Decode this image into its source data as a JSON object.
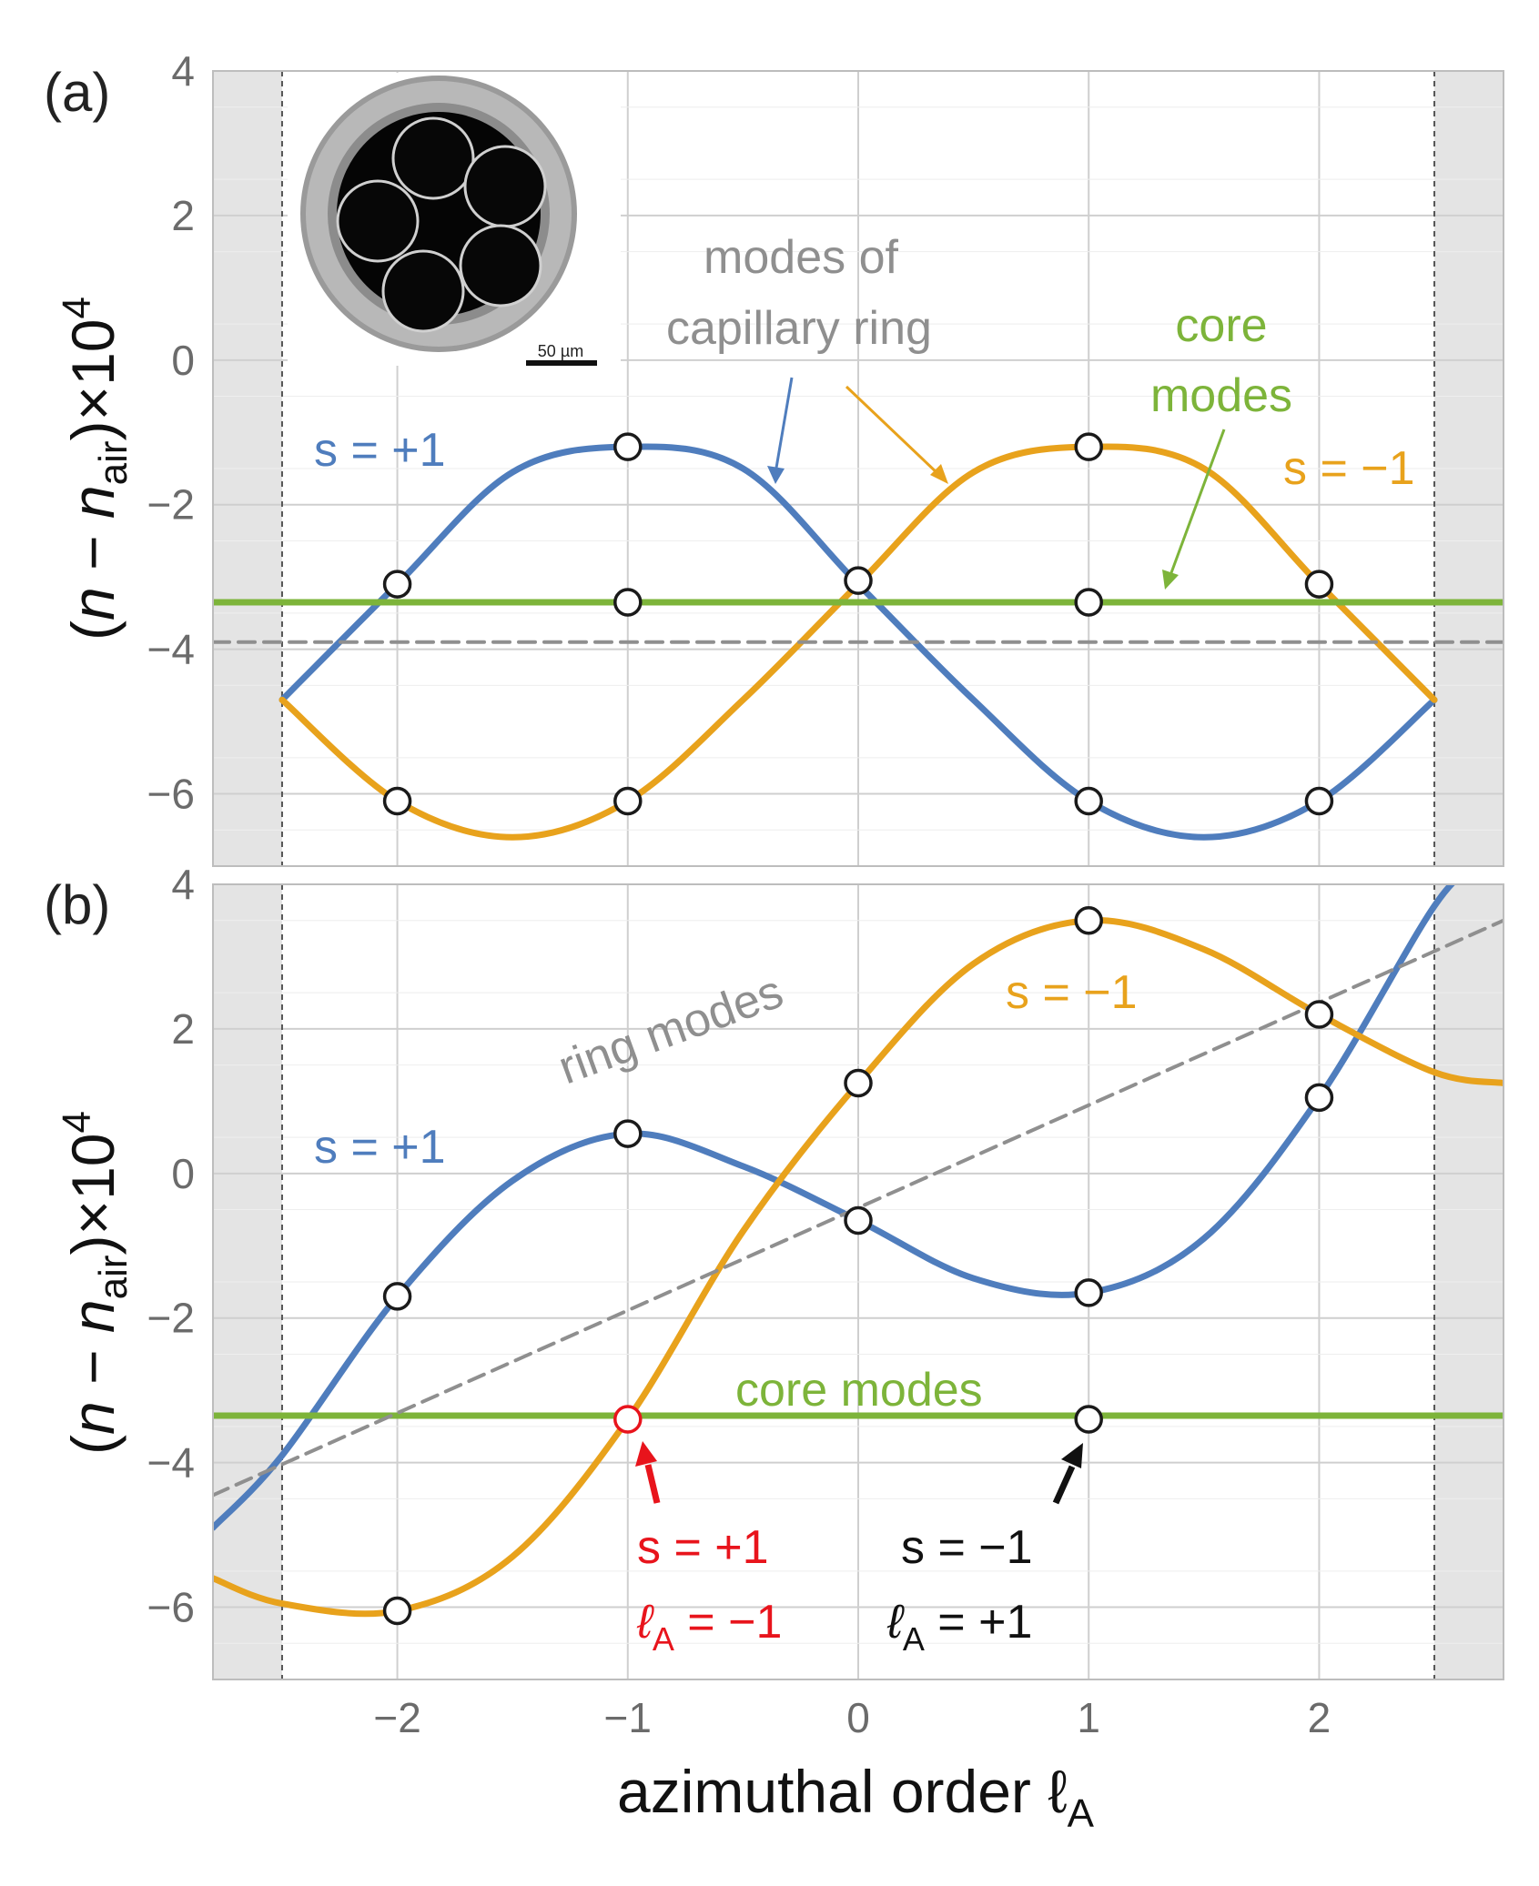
{
  "colors": {
    "s_plus": "#4f7dbd",
    "s_minus": "#e8a21c",
    "core": "#7db43a",
    "ring": "#8f8f8f",
    "shade": "#e4e4e4",
    "highlight": "#e8141c",
    "grid": "#cfcfcf"
  },
  "shared": {
    "xlabel_main": "azimuthal order ℓ",
    "xlabel_sub": "A",
    "xticks": [
      "−2",
      "−1",
      "0",
      "1",
      "2"
    ],
    "xtick_values": [
      -2,
      -1,
      0,
      1,
      2
    ],
    "xlim": [
      -2.8,
      2.8
    ],
    "shaded_edges": [
      -2.5,
      2.5
    ]
  },
  "chart_data": [
    {
      "type": "line",
      "panel_label": "(a)",
      "ylabel": "(n − n_air)×10^4",
      "ylim": [
        -7,
        4
      ],
      "yticks": [
        "4",
        "2",
        "0",
        "−2",
        "−4",
        "−6"
      ],
      "ytick_values": [
        4,
        2,
        0,
        -2,
        -4,
        -6
      ],
      "grid": true,
      "series": [
        {
          "name": "s = +1",
          "style": "solid",
          "x": [
            -2.5,
            -2,
            -1.5,
            -1,
            -0.5,
            0,
            0.5,
            1,
            1.5,
            2,
            2.5
          ],
          "y": [
            -4.7,
            -3.1,
            -1.55,
            -1.2,
            -1.5,
            -3.1,
            -4.7,
            -6.1,
            -6.6,
            -6.1,
            -4.7
          ]
        },
        {
          "name": "s = −1",
          "style": "solid",
          "x": [
            -2.5,
            -2,
            -1.5,
            -1,
            -0.5,
            0,
            0.5,
            1,
            1.5,
            2,
            2.5
          ],
          "y": [
            -4.7,
            -6.1,
            -6.6,
            -6.1,
            -4.7,
            -3.1,
            -1.55,
            -1.2,
            -1.5,
            -3.1,
            -4.7
          ]
        },
        {
          "name": "core modes",
          "style": "solid",
          "x": [
            -2.8,
            2.8
          ],
          "y": [
            -3.35,
            -3.35
          ]
        },
        {
          "name": "modes of capillary ring",
          "style": "dashed",
          "x": [
            -2.8,
            2.8
          ],
          "y": [
            -3.9,
            -3.9
          ]
        }
      ],
      "points": [
        {
          "x": -2,
          "y": -3.1
        },
        {
          "x": -2,
          "y": -6.1
        },
        {
          "x": -1,
          "y": -1.2
        },
        {
          "x": -1,
          "y": -3.35
        },
        {
          "x": -1,
          "y": -6.1
        },
        {
          "x": 0,
          "y": -3.05
        },
        {
          "x": 1,
          "y": -1.2
        },
        {
          "x": 1,
          "y": -3.35
        },
        {
          "x": 1,
          "y": -6.1
        },
        {
          "x": 2,
          "y": -3.1
        },
        {
          "x": 2,
          "y": -6.1
        }
      ],
      "annotations": {
        "s_plus": "s = +1",
        "s_minus": "s = −1",
        "ring_line1": "modes of",
        "ring_line2": "capillary ring",
        "core_line1": "core",
        "core_line2": "modes",
        "scale_bar": "50 µm"
      }
    },
    {
      "type": "line",
      "panel_label": "(b)",
      "ylabel": "(n − n_air)×10^4",
      "ylim": [
        -7,
        4
      ],
      "yticks": [
        "4",
        "2",
        "0",
        "−2",
        "−4",
        "−6"
      ],
      "ytick_values": [
        4,
        2,
        0,
        -2,
        -4,
        -6
      ],
      "grid": true,
      "series": [
        {
          "name": "s = +1",
          "style": "solid",
          "x": [
            -2.8,
            -2.5,
            -2,
            -1.5,
            -1,
            -0.5,
            0,
            0.5,
            1,
            1.5,
            2,
            2.5,
            2.7
          ],
          "y": [
            -4.9,
            -3.9,
            -1.7,
            -0.1,
            0.55,
            0.1,
            -0.65,
            -1.45,
            -1.65,
            -0.9,
            1.05,
            3.7,
            4.3
          ]
        },
        {
          "name": "s = −1",
          "style": "solid",
          "x": [
            -2.8,
            -2.5,
            -2,
            -1.5,
            -1,
            -0.5,
            0,
            0.5,
            1,
            1.5,
            2,
            2.5,
            2.8
          ],
          "y": [
            -5.6,
            -5.95,
            -6.05,
            -5.3,
            -3.4,
            -0.8,
            1.25,
            2.9,
            3.5,
            3.1,
            2.2,
            1.4,
            1.25
          ]
        },
        {
          "name": "core modes",
          "style": "solid",
          "x": [
            -2.8,
            2.8
          ],
          "y": [
            -3.35,
            -3.35
          ]
        },
        {
          "name": "ring modes",
          "style": "dashed",
          "x": [
            -2.8,
            2.8
          ],
          "y": [
            -4.45,
            3.5
          ]
        }
      ],
      "points": [
        {
          "x": -2,
          "y": -1.7
        },
        {
          "x": -2,
          "y": -6.05
        },
        {
          "x": -1,
          "y": 0.55
        },
        {
          "x": -1,
          "y": -3.4,
          "highlight": true
        },
        {
          "x": 0,
          "y": 1.25
        },
        {
          "x": 0,
          "y": -0.65
        },
        {
          "x": 1,
          "y": 3.5
        },
        {
          "x": 1,
          "y": -1.65
        },
        {
          "x": 1,
          "y": -3.4
        },
        {
          "x": 2,
          "y": 2.2
        },
        {
          "x": 2,
          "y": 1.05
        }
      ],
      "annotations": {
        "s_plus": "s = +1",
        "s_minus": "s = −1",
        "ring": "ring modes",
        "core": "core modes",
        "red_s": "s = +1",
        "red_l_main": "ℓ",
        "red_l_sub": "A",
        "red_l_val": " = −1",
        "black_s": "s = −1",
        "black_l_main": "ℓ",
        "black_l_sub": "A",
        "black_l_val": " = +1"
      }
    }
  ]
}
